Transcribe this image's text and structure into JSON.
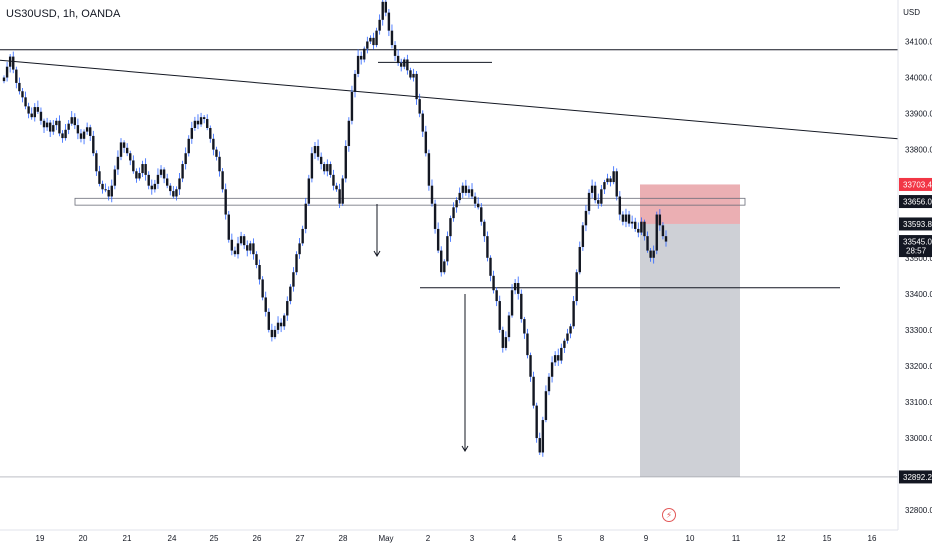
{
  "header": {
    "symbol": "US30USD, 1h, OANDA",
    "currency": "USD"
  },
  "chart_data": {
    "type": "candlestick",
    "y_ticks": [
      34100,
      34000,
      33900,
      33800,
      33700,
      33600,
      33500,
      33400,
      33300,
      33200,
      33100,
      33000,
      32900,
      32800
    ],
    "y_tick_labels": [
      "34100.0",
      "34000.0",
      "33900.0",
      "33800.0",
      "33700.0",
      "33600.0",
      "33500.0",
      "33400.0",
      "33300.0",
      "33200.0",
      "33100.0",
      "33000.0",
      "32900.0",
      "32800.0"
    ],
    "ylim": [
      32745,
      34215
    ],
    "x_labels": [
      "19",
      "20",
      "21",
      "24",
      "25",
      "26",
      "27",
      "28",
      "May",
      "2",
      "3",
      "4",
      "5",
      "8",
      "9",
      "10",
      "11",
      "12",
      "15",
      "16"
    ],
    "price_tags": [
      {
        "value": 33703.4,
        "label": "33703.4",
        "color": "#f23645"
      },
      {
        "value": 33656.0,
        "label": "33656.0",
        "color": "#131722"
      },
      {
        "value": 33593.8,
        "label": "33593.8",
        "color": "#131722"
      },
      {
        "value": 33545.0,
        "label": "33545.0",
        "sublabel": "28:57",
        "color": "#131722"
      },
      {
        "value": 32892.2,
        "label": "32892.2",
        "color": "#131722"
      }
    ],
    "horizontal_lines": [
      34077,
      34042,
      33417,
      32892.2
    ],
    "trendline": {
      "from": 34048,
      "to": 33830
    },
    "support_zone": [
      33665,
      33646
    ],
    "position": {
      "entry": 33593.8,
      "stop": 33703.4,
      "target": 32892.2
    },
    "colors": {
      "candle": "#131722",
      "wick": "#2962ff",
      "stop_zone": "#e8a1a6",
      "target_zone": "#c5c8cf",
      "lines": "#131722",
      "axis_text": "#131722"
    },
    "candles_close": [
      34000,
      34030,
      34058,
      34022,
      33985,
      33962,
      33945,
      33920,
      33900,
      33890,
      33918,
      33905,
      33880,
      33862,
      33875,
      33850,
      33868,
      33880,
      33845,
      33832,
      33855,
      33872,
      33890,
      33868,
      33845,
      33830,
      33850,
      33862,
      33838,
      33790,
      33740,
      33705,
      33690,
      33688,
      33670,
      33700,
      33745,
      33780,
      33820,
      33805,
      33790,
      33770,
      33740,
      33720,
      33735,
      33760,
      33730,
      33700,
      33690,
      33705,
      33730,
      33745,
      33720,
      33700,
      33685,
      33670,
      33690,
      33720,
      33760,
      33790,
      33830,
      33860,
      33880,
      33870,
      33890,
      33885,
      33860,
      33830,
      33800,
      33780,
      33740,
      33690,
      33620,
      33550,
      33520,
      33510,
      33540,
      33560,
      33535,
      33520,
      33540,
      33510,
      33480,
      33440,
      33390,
      33350,
      33300,
      33280,
      33300,
      33320,
      33310,
      33340,
      33380,
      33420,
      33460,
      33510,
      33540,
      33580,
      33650,
      33720,
      33790,
      33810,
      33780,
      33760,
      33740,
      33760,
      33730,
      33700,
      33690,
      33650,
      33720,
      33810,
      33880,
      33960,
      34010,
      34060,
      34050,
      34080,
      34100,
      34110,
      34090,
      34130,
      34160,
      34210,
      34180,
      34130,
      34090,
      34060,
      34040,
      34030,
      34050,
      34020,
      34000,
      34010,
      33940,
      33900,
      33850,
      33790,
      33700,
      33650,
      33580,
      33520,
      33460,
      33490,
      33560,
      33610,
      33640,
      33660,
      33680,
      33700,
      33680,
      33690,
      33670,
      33650,
      33640,
      33600,
      33560,
      33500,
      33450,
      33410,
      33380,
      33300,
      33250,
      33280,
      33340,
      33410,
      33430,
      33400,
      33330,
      33290,
      33230,
      33170,
      33090,
      33000,
      32960,
      33050,
      33130,
      33170,
      33210,
      33230,
      33215,
      33250,
      33270,
      33290,
      33310,
      33380,
      33460,
      33530,
      33590,
      33630,
      33680,
      33700,
      33660,
      33650,
      33690,
      33710,
      33720,
      33710,
      33740,
      33670,
      33620,
      33600,
      33620,
      33595,
      33600,
      33580,
      33570,
      33600,
      33560,
      33520,
      33500,
      33520,
      33620,
      33590,
      33560,
      33545
    ]
  }
}
